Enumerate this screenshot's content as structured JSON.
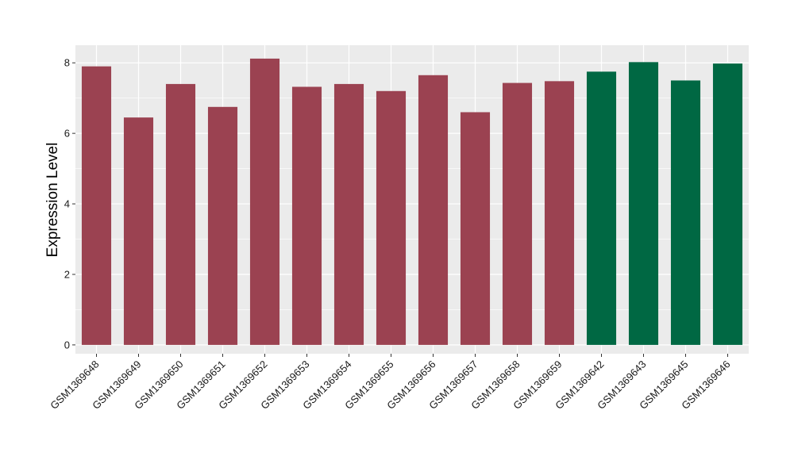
{
  "chart_data": {
    "type": "bar",
    "title": "",
    "xlabel": "",
    "ylabel": "Expression Level",
    "ylim": [
      -0.25,
      8.5
    ],
    "yticks": [
      0,
      2,
      4,
      6,
      8
    ],
    "grid": true,
    "legend": "none",
    "categories": [
      "GSM1369648",
      "GSM1369649",
      "GSM1369650",
      "GSM1369651",
      "GSM1369652",
      "GSM1369653",
      "GSM1369654",
      "GSM1369655",
      "GSM1369656",
      "GSM1369657",
      "GSM1369658",
      "GSM1369659",
      "GSM1369642",
      "GSM1369643",
      "GSM1369645",
      "GSM1369646"
    ],
    "values": [
      7.9,
      6.45,
      7.4,
      6.75,
      8.12,
      7.32,
      7.4,
      7.2,
      7.65,
      6.6,
      7.43,
      7.48,
      7.75,
      8.02,
      7.5,
      7.98
    ],
    "groups": [
      "a",
      "a",
      "a",
      "a",
      "a",
      "a",
      "a",
      "a",
      "a",
      "a",
      "a",
      "a",
      "b",
      "b",
      "b",
      "b"
    ],
    "colors": {
      "a": "#9b4251",
      "b": "#006843",
      "panel": "#ebebeb",
      "grid": "#ffffff"
    }
  }
}
